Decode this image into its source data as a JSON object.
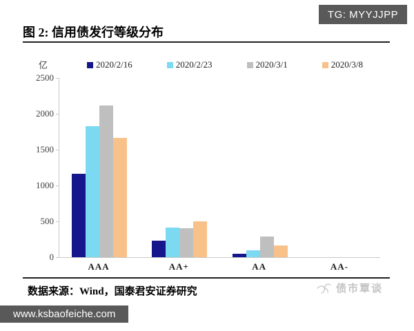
{
  "overlay": {
    "tg_label": "TG: MYYJJPP",
    "site_label": "www.ksbaofeiche.com"
  },
  "figure": {
    "title": "图 2: 信用债发行等级分布",
    "source": "数据来源：Wind，国泰君安证券研究",
    "watermark": "债市覃谈"
  },
  "chart_data": {
    "type": "bar",
    "title": "图 2: 信用债发行等级分布",
    "unit_label": "亿",
    "categories": [
      "AAA",
      "AA+",
      "AA",
      "AA-"
    ],
    "series": [
      {
        "name": "2020/2/16",
        "color": "#16168C",
        "values": [
          1160,
          230,
          50,
          0
        ]
      },
      {
        "name": "2020/2/23",
        "color": "#7CD9F2",
        "values": [
          1830,
          415,
          100,
          0
        ]
      },
      {
        "name": "2020/3/1",
        "color": "#BFBFBF",
        "values": [
          2120,
          405,
          290,
          0
        ]
      },
      {
        "name": "2020/3/8",
        "color": "#F9C18A",
        "values": [
          1660,
          500,
          160,
          0
        ]
      }
    ],
    "ylim": [
      0,
      2500
    ],
    "yticks": [
      0,
      500,
      1000,
      1500,
      2000,
      2500
    ],
    "legend_position": "top",
    "grid": false
  }
}
